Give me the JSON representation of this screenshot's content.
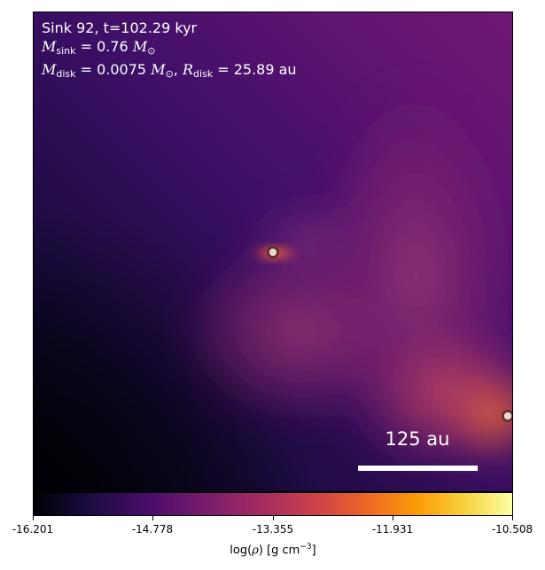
{
  "annotation": {
    "line1": "Sink 92, t=102.29 kyr",
    "msink_label": "M",
    "msink_sub": "sink",
    "msink_value": " = 0.76 ",
    "msun": "M",
    "msun_sub": "⊙",
    "mdisk_label": "M",
    "mdisk_sub": "disk",
    "mdisk_value": " = 0.0075 ",
    "rdisk_label": "R",
    "rdisk_sub": "disk",
    "rdisk_value": " = 25.89 au"
  },
  "scalebar": {
    "label": "125 au"
  },
  "colorbar": {
    "ticks": [
      "-16.201",
      "-14.778",
      "-13.355",
      "-11.931",
      "-10.508"
    ],
    "label_prefix": "log(",
    "label_rho": "ρ",
    "label_mid": ") [g cm",
    "label_exp": "−3",
    "label_suffix": "]"
  },
  "colors": {
    "colormap": "inferno",
    "sink_fill": "#e8d8d0",
    "sink_edge": "#5a2a24"
  }
}
